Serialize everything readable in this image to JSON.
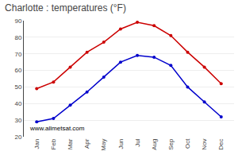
{
  "chart_data": {
    "type": "line",
    "title": "Charlotte : temperatures (°F)",
    "categories": [
      "Jan",
      "Feb",
      "Mar",
      "Apr",
      "May",
      "Jun",
      "Jul",
      "Aug",
      "Sep",
      "Oct",
      "Nov",
      "Dec"
    ],
    "series": [
      {
        "color": "#cc0000",
        "values": [
          49,
          53,
          62,
          71,
          77,
          85,
          89,
          87,
          81,
          71,
          62,
          52
        ]
      },
      {
        "color": "#0000cc",
        "values": [
          29,
          31,
          39,
          47,
          56,
          65,
          69,
          68,
          63,
          50,
          41,
          32
        ]
      }
    ],
    "ylim": [
      20,
      90
    ],
    "yticks": [
      20,
      30,
      40,
      50,
      60,
      70,
      80,
      90
    ],
    "grid": true,
    "marker": "circle",
    "annotations": [
      "www.allmetsat.com"
    ]
  }
}
